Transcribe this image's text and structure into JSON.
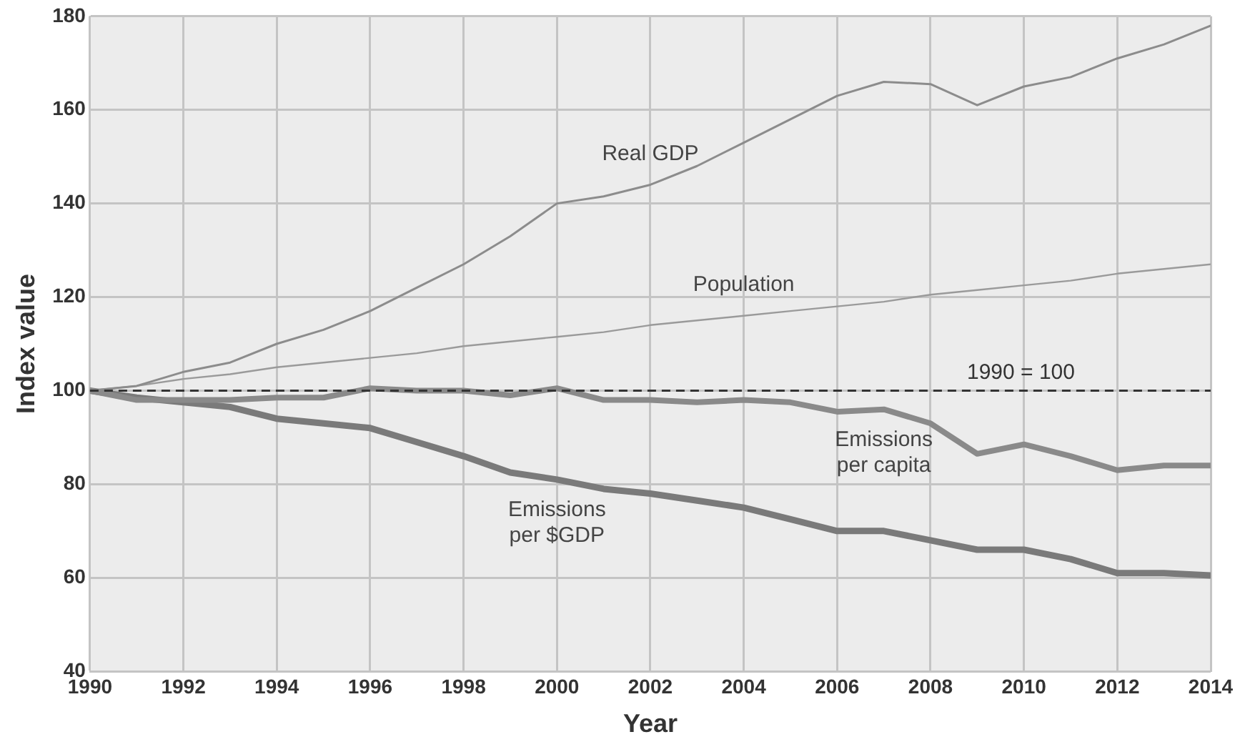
{
  "chart_data": {
    "type": "line",
    "xlabel": "Year",
    "ylabel": "Index value",
    "x": [
      1990,
      1991,
      1992,
      1993,
      1994,
      1995,
      1996,
      1997,
      1998,
      1999,
      2000,
      2001,
      2002,
      2003,
      2004,
      2005,
      2006,
      2007,
      2008,
      2009,
      2010,
      2011,
      2012,
      2013,
      2014
    ],
    "series": [
      {
        "name": "Real GDP",
        "color": "#8c8c8c",
        "values": [
          100,
          101,
          104,
          106,
          110,
          113,
          117,
          122,
          127,
          133,
          140,
          141.5,
          144,
          148,
          153,
          158,
          163,
          166,
          165.5,
          161,
          165,
          167,
          171,
          174,
          178
        ]
      },
      {
        "name": "Population",
        "color": "#9a9a9a",
        "values": [
          100,
          101,
          102.5,
          103.5,
          105,
          106,
          107,
          108,
          109.5,
          110.5,
          111.5,
          112.5,
          114,
          115,
          116,
          117,
          118,
          119,
          120.5,
          121.5,
          122.5,
          123.5,
          125,
          126,
          127
        ]
      },
      {
        "name": "Emissions per capita",
        "color": "#8a8a8a",
        "values": [
          100,
          98,
          98,
          98,
          98.5,
          98.5,
          100.5,
          100,
          100,
          99,
          100.5,
          98,
          98,
          97.5,
          98,
          97.5,
          95.5,
          96,
          93,
          86.5,
          88.5,
          86,
          83,
          84,
          84
        ]
      },
      {
        "name": "Emissions per $GDP",
        "color": "#7a7a7a",
        "values": [
          100,
          98.5,
          97.5,
          96.5,
          94,
          93,
          92,
          89,
          86,
          82.5,
          81,
          79,
          78,
          76.5,
          75,
          72.5,
          70,
          70,
          68,
          66,
          66,
          64,
          61,
          61,
          60.5
        ]
      }
    ],
    "xlim": [
      1990,
      2014
    ],
    "xticks": [
      1990,
      1992,
      1994,
      1996,
      1998,
      2000,
      2002,
      2004,
      2006,
      2008,
      2010,
      2012,
      2014
    ],
    "ylim": [
      40,
      180
    ],
    "yticks": [
      40,
      60,
      80,
      100,
      120,
      140,
      160,
      180
    ],
    "ref_lines": [
      {
        "axis": "y",
        "value": 100,
        "label": "1990 = 100",
        "color": "#333333",
        "line_style": "dashed"
      }
    ],
    "grid": true,
    "legend": false,
    "marker": "none",
    "line_style": "solid"
  }
}
